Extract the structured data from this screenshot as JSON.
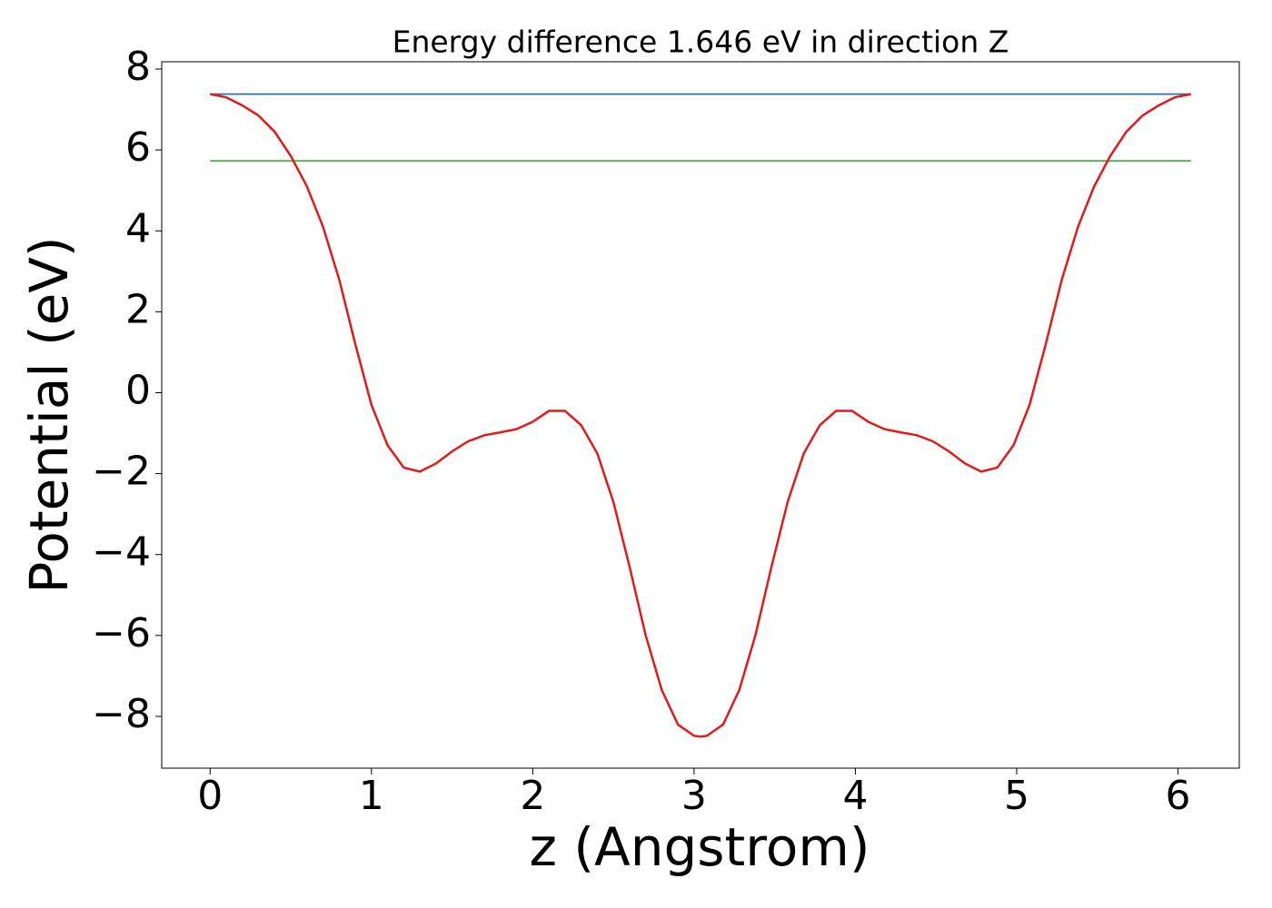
{
  "chart_data": {
    "type": "line",
    "title": "Energy difference 1.646 eV in direction Z",
    "xlabel": "z (Angstrom)",
    "ylabel": "Potential (eV)",
    "xlim": [
      -0.3,
      6.38
    ],
    "ylim": [
      -9.28,
      8.18
    ],
    "xticks": [
      0,
      1,
      2,
      3,
      4,
      5,
      6
    ],
    "yticks": [
      {
        "value": -8,
        "label": "−8"
      },
      {
        "value": -6,
        "label": "−6"
      },
      {
        "value": -4,
        "label": "−4"
      },
      {
        "value": -2,
        "label": "−2"
      },
      0,
      2,
      4,
      6,
      8
    ],
    "series": [
      {
        "color": "#e31a1c",
        "x": [
          0,
          0.1,
          0.2,
          0.3,
          0.4,
          0.5,
          0.6,
          0.7,
          0.8,
          0.9,
          1.0,
          1.1,
          1.2,
          1.3,
          1.4,
          1.5,
          1.6,
          1.7,
          1.8,
          1.9,
          2.0,
          2.1,
          2.2,
          2.3,
          2.4,
          2.5,
          2.6,
          2.7,
          2.8,
          2.9,
          3.0,
          3.04,
          3.08,
          3.18,
          3.28,
          3.38,
          3.48,
          3.58,
          3.68,
          3.78,
          3.88,
          3.98,
          4.08,
          4.18,
          4.28,
          4.38,
          4.48,
          4.58,
          4.68,
          4.78,
          4.88,
          4.98,
          5.08,
          5.18,
          5.28,
          5.38,
          5.48,
          5.58,
          5.68,
          5.78,
          5.88,
          5.98,
          6.08
        ],
        "values": [
          7.38,
          7.3,
          7.1,
          6.85,
          6.45,
          5.85,
          5.1,
          4.1,
          2.8,
          1.2,
          -0.3,
          -1.3,
          -1.85,
          -1.95,
          -1.75,
          -1.45,
          -1.2,
          -1.05,
          -0.98,
          -0.9,
          -0.72,
          -0.45,
          -0.45,
          -0.8,
          -1.5,
          -2.7,
          -4.3,
          -6.0,
          -7.35,
          -8.2,
          -8.48,
          -8.5,
          -8.48,
          -8.2,
          -7.35,
          -6.0,
          -4.3,
          -2.7,
          -1.5,
          -0.8,
          -0.45,
          -0.45,
          -0.72,
          -0.9,
          -0.98,
          -1.05,
          -1.2,
          -1.45,
          -1.75,
          -1.95,
          -1.85,
          -1.3,
          -0.3,
          1.2,
          2.8,
          4.1,
          5.1,
          5.85,
          6.45,
          6.85,
          7.1,
          7.3,
          7.38
        ]
      },
      {
        "color": "#1f77b4",
        "x": [
          0,
          6.08
        ],
        "values": [
          7.38,
          7.38
        ]
      },
      {
        "color": "#4daf4a",
        "x": [
          0,
          6.08
        ],
        "values": [
          5.73,
          5.73
        ]
      }
    ]
  }
}
